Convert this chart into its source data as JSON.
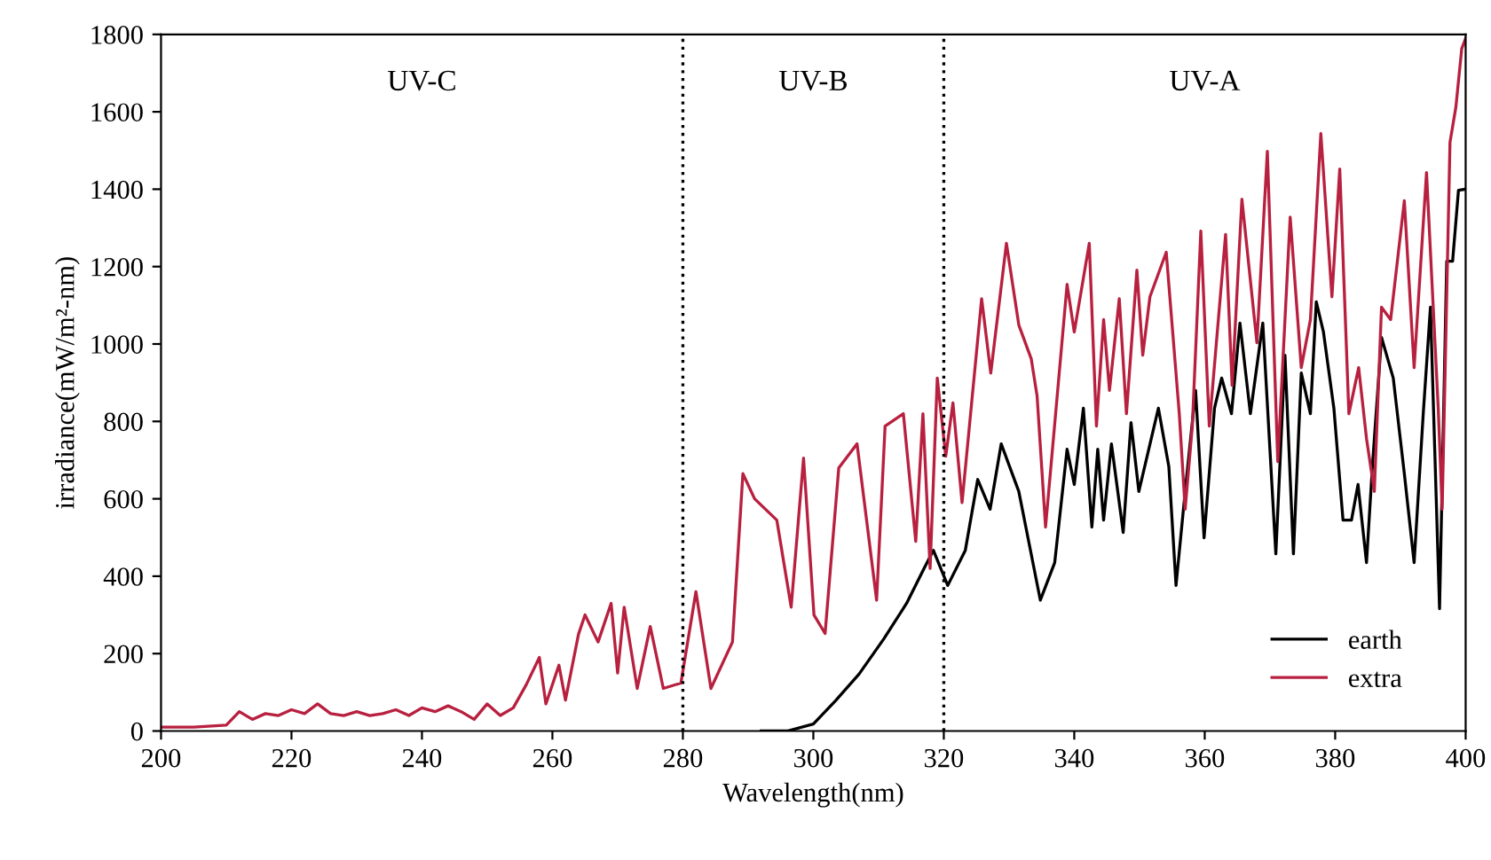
{
  "chart_data": {
    "type": "line",
    "xlabel": "Wavelength(nm)",
    "ylabel": "irradiance(mW/m²-nm)",
    "xlim": [
      200,
      400
    ],
    "xticks": [
      200,
      220,
      240,
      260,
      280,
      300,
      320,
      340,
      360,
      380,
      400
    ],
    "ylim": [
      0,
      1800
    ],
    "yticks": [
      0,
      200,
      400,
      600,
      800,
      1000,
      1200,
      1400,
      1600,
      1800
    ],
    "grid": false,
    "legend": "bottom right",
    "marker": "none",
    "line_style": "solid",
    "ref_lines": [
      {
        "axis": "x",
        "value": 280,
        "color": "#000000",
        "line_style": "dotted"
      },
      {
        "axis": "x",
        "value": 320,
        "color": "#000000",
        "line_style": "dotted"
      }
    ],
    "annotations": [
      "UV-C",
      "UV-B",
      "UV-A"
    ],
    "series": [
      {
        "name": "earth",
        "color": "#000000",
        "x": [
          292,
          296,
          300,
          303.4,
          307,
          310.8,
          314.3,
          317,
          318.4,
          320.6,
          323.3,
          325.2,
          327.1,
          328.8,
          331.5,
          334.8,
          337,
          338.9,
          340,
          341.4,
          342.7,
          343.6,
          344.5,
          345.7,
          347.5,
          348.7,
          349.9,
          352.9,
          354.5,
          355.6,
          357,
          358.6,
          359.9,
          361.5,
          362.6,
          364.1,
          365.4,
          367,
          368.9,
          370.9,
          372.3,
          373.6,
          374.8,
          376.2,
          377.1,
          378.2,
          379.8,
          381.2,
          382.5,
          383.5,
          384.8,
          385.7,
          387.1,
          388.9,
          390.6,
          392.1,
          393.5,
          394.6,
          396,
          397.1,
          398,
          398.9,
          400
        ],
        "values": [
          0,
          0,
          18,
          78,
          147,
          238,
          330,
          421,
          467,
          376,
          467,
          650,
          573,
          742,
          619,
          338,
          435,
          728,
          637,
          834,
          527,
          728,
          545,
          742,
          513,
          797,
          619,
          834,
          683,
          376,
          619,
          880,
          499,
          834,
          912,
          820,
          1054,
          820,
          1054,
          458,
          971,
          458,
          925,
          820,
          1109,
          1031,
          834,
          545,
          545,
          637,
          435,
          683,
          1017,
          912,
          665,
          435,
          820,
          1095,
          316,
          1214,
          1214,
          1397,
          1400
        ]
      },
      {
        "name": "extra",
        "color": "#b8203f",
        "x": [
          200,
          205,
          210,
          212,
          214,
          216,
          218,
          220,
          222,
          224,
          226,
          228,
          230,
          232,
          234,
          236,
          238,
          240,
          242,
          244,
          246,
          248,
          250,
          252,
          254,
          256,
          258,
          259,
          261,
          262,
          264,
          265,
          267,
          269,
          270,
          271,
          273,
          275,
          277,
          279.7,
          282,
          284.3,
          287.6,
          289.2,
          291,
          294.4,
          296.6,
          298.5,
          300.1,
          301.8,
          303.9,
          306.7,
          309.7,
          311,
          313.8,
          315.7,
          316.8,
          317.9,
          319,
          320.3,
          321.4,
          322.8,
          325.8,
          327.2,
          329.6,
          331.5,
          333.4,
          334.3,
          335.6,
          338.9,
          340,
          342.3,
          343.4,
          344.5,
          345.4,
          346.9,
          348,
          349.6,
          350.5,
          351.6,
          354.1,
          356.1,
          357,
          358.1,
          359.4,
          360.7,
          363.2,
          364.2,
          365.7,
          368,
          369.6,
          371.2,
          373.1,
          374.8,
          376.2,
          377.8,
          379.5,
          380.7,
          382.1,
          383.6,
          384.8,
          386,
          387.1,
          388.5,
          390.6,
          392.1,
          394,
          395.8,
          396.4,
          397.6,
          398.5,
          399.4,
          400
        ],
        "values": [
          10,
          10,
          15,
          50,
          30,
          45,
          40,
          55,
          45,
          70,
          45,
          40,
          50,
          40,
          45,
          55,
          40,
          60,
          50,
          65,
          50,
          30,
          70,
          40,
          60,
          120,
          190,
          70,
          170,
          80,
          250,
          300,
          230,
          330,
          150,
          320,
          110,
          270,
          110,
          124,
          360,
          110,
          230,
          665,
          600,
          545,
          320,
          705,
          300,
          252,
          680,
          742,
          338,
          788,
          820,
          490,
          820,
          420,
          912,
          710,
          848,
          590,
          1117,
          925,
          1260,
          1049,
          962,
          866,
          527,
          1154,
          1031,
          1260,
          788,
          1063,
          880,
          1117,
          820,
          1191,
          971,
          1122,
          1237,
          820,
          573,
          788,
          1292,
          788,
          1283,
          893,
          1374,
          1003,
          1498,
          696,
          1328,
          939,
          1063,
          1544,
          1122,
          1452,
          820,
          939,
          756,
          619,
          1095,
          1063,
          1370,
          939,
          1443,
          834,
          573,
          1521,
          1612,
          1763,
          1790
        ]
      }
    ]
  }
}
